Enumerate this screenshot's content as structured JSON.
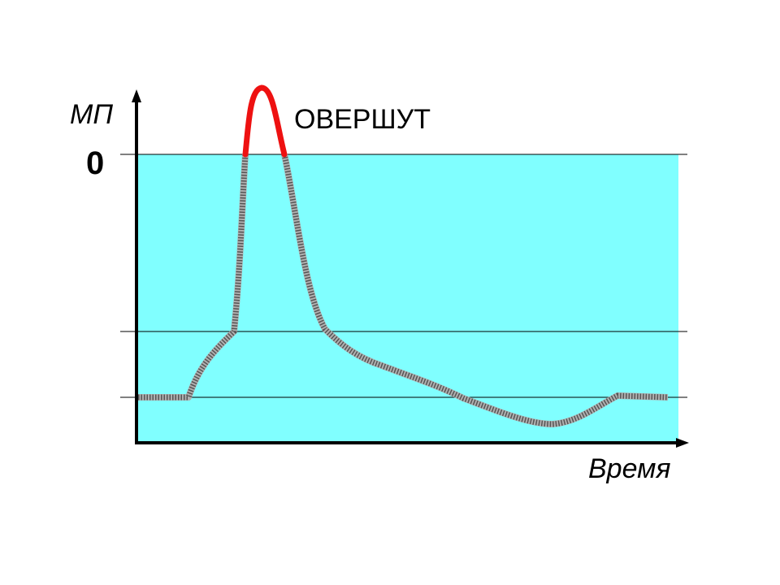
{
  "y_axis_label": "МП",
  "zero_label": "0",
  "annotation": "ОВЕРШУТ",
  "x_axis_label": "Время"
}
